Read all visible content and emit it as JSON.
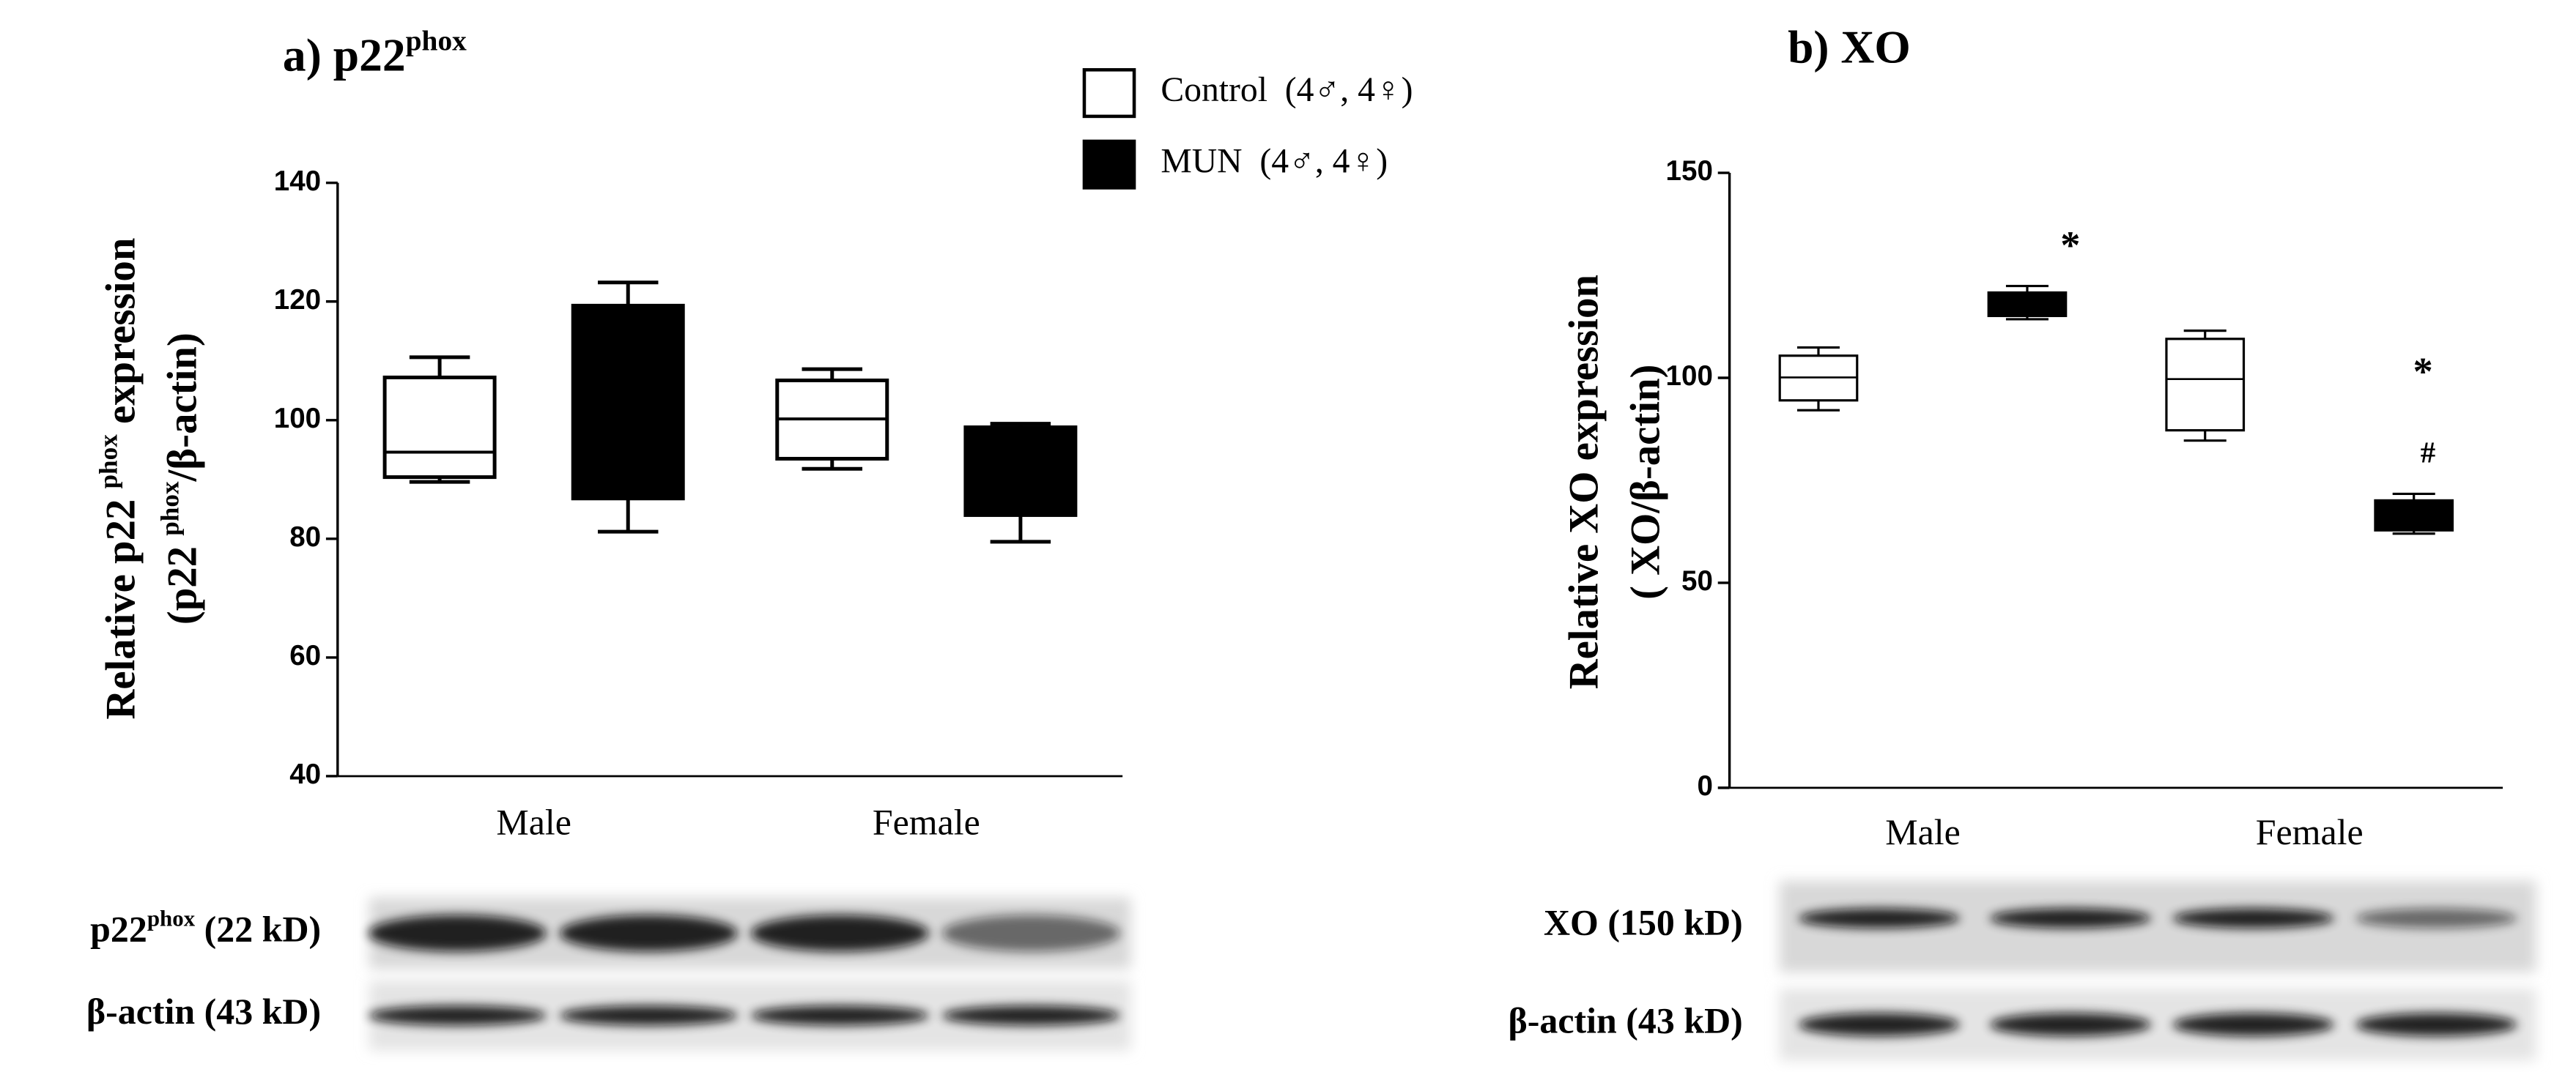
{
  "chart_data": [
    {
      "type": "box",
      "title": [
        "a) p22",
        "phox"
      ],
      "ylabel": [
        [
          "Relative p22 ",
          "phox",
          " expression"
        ],
        [
          "(p22 ",
          "phox",
          "/β-actin)"
        ]
      ],
      "categories": [
        "Male",
        "Female"
      ],
      "series": [
        {
          "name": "Control  (4♂, 4♀)",
          "color": "#ffffff",
          "values": [
            [
              89.6,
              90.4,
              94.6,
              107.2,
              110.6
            ],
            [
              91.8,
              93.5,
              100.2,
              106.7,
              108.6
            ]
          ]
        },
        {
          "name": "MUN  (4♂, 4♀)",
          "color": "#000000",
          "values": [
            [
              81.2,
              86.8,
              100,
              119.3,
              123.2
            ],
            [
              79.5,
              84,
              92,
              98.8,
              99.4
            ]
          ]
        }
      ],
      "ylim": [
        40,
        140
      ],
      "yticks": [
        40,
        60,
        80,
        100,
        120,
        140
      ],
      "blot_labels": [
        [
          "p22",
          "phox",
          " (22 kD)"
        ],
        [
          "β-actin (43 kD)"
        ]
      ]
    },
    {
      "type": "box",
      "title": [
        "b) XO"
      ],
      "ylabel": [
        [
          "Relative XO expression"
        ],
        [
          "( XO/β-actin)"
        ]
      ],
      "categories": [
        "Male",
        "Female"
      ],
      "series": [
        {
          "name": "Control  (4♂, 4♀)",
          "color": "#ffffff",
          "values": [
            [
              92.1,
              94.5,
              100.1,
              105.4,
              107.4
            ],
            [
              84.7,
              87.2,
              99.7,
              109.5,
              111.5
            ]
          ]
        },
        {
          "name": "MUN  (4♂, 4♀)",
          "color": "#000000",
          "values": [
            [
              114.3,
              115.1,
              118,
              120.8,
              122.4
            ],
            [
              62,
              62.8,
              66,
              70.1,
              71.7
            ]
          ]
        }
      ],
      "ylim": [
        0,
        150
      ],
      "yticks": [
        0,
        50,
        100,
        150
      ],
      "annotations": [
        "*",
        "*",
        "#"
      ],
      "blot_labels": [
        [
          "XO (150 kD)"
        ],
        [
          "β-actin (43 kD)"
        ]
      ]
    }
  ]
}
